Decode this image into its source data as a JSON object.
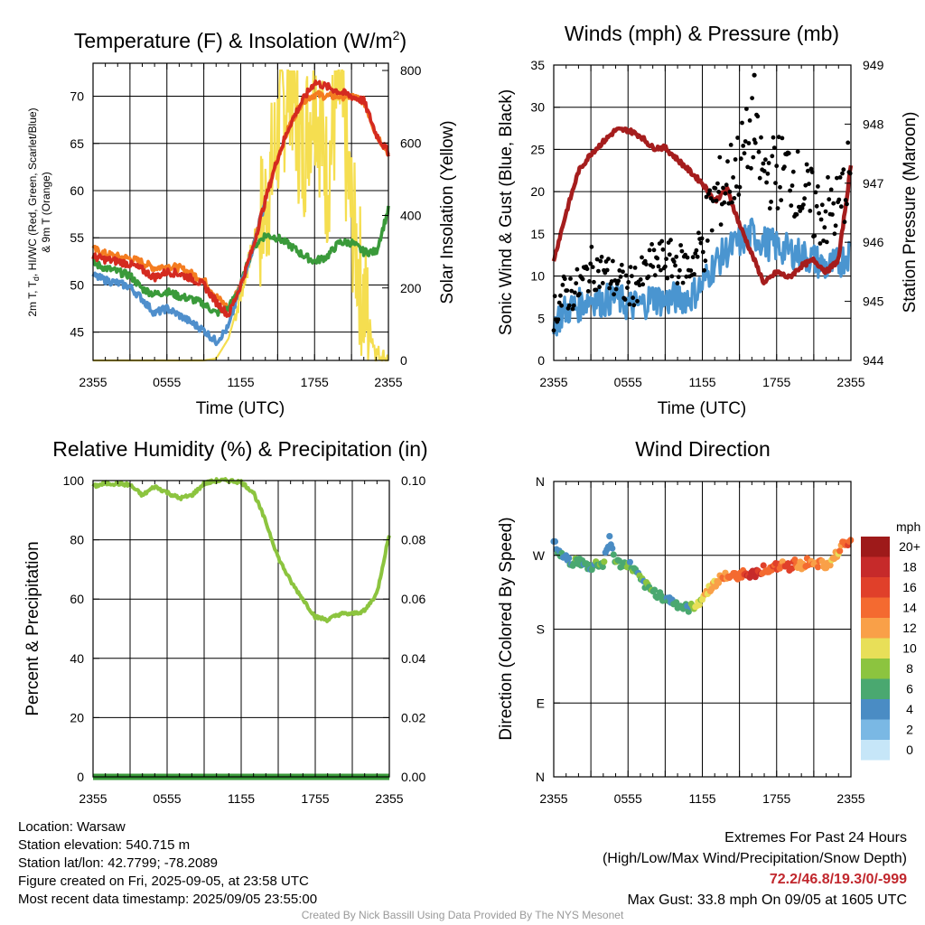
{
  "colors": {
    "temp": "#d42a20",
    "dewpoint": "#3a9a3a",
    "chill": "#4f8fcc",
    "temp9m": "#f47c20",
    "solar": "#f5de50",
    "wind": "#4a95d0",
    "gust": "#000000",
    "pressure": "#a51d1d",
    "rh": "#8cc43f",
    "precip": "#3a9a3a"
  },
  "time_ticks": [
    "2355",
    "0555",
    "1155",
    "1755",
    "2355"
  ],
  "panels": {
    "temperature": {
      "title": "Temperature (F) & Insolation (W/m",
      "title_sup": "2",
      "title_close": ")",
      "y_left_label_line1": "2m T, T",
      "y_left_label_sub": "d",
      "y_left_label_line1_rest": ", HI/WC (Red, Green, Scarlet/Blue)",
      "y_left_label_line2": "& 9m T (Orange)",
      "y_right_label": "Solar Insolation (Yellow)",
      "x_label": "Time (UTC)"
    },
    "winds": {
      "title": "Winds (mph) & Pressure (mb)",
      "y_left_label": "Sonic Wind & Gust (Blue, Black)",
      "y_right_label": "Station Pressure (Maroon)",
      "x_label": "Time (UTC)"
    },
    "humidity": {
      "title": "Relative Humidity (%) & Precipitation (in)",
      "y_left_label": "Percent & Precipitation"
    },
    "direction": {
      "title": "Wind Direction",
      "y_left_label": "Direction (Colored By Speed)",
      "colorbar_title": "mph",
      "colorbar_labels": [
        "20+",
        "18",
        "16",
        "14",
        "12",
        "10",
        "8",
        "6",
        "4",
        "2",
        "0"
      ],
      "colorbar_colors": [
        "#9e1a1a",
        "#c62a2a",
        "#e0402a",
        "#f46a30",
        "#f9a048",
        "#e8df58",
        "#8cc43f",
        "#4aa870",
        "#4a8cc4",
        "#7ab8e4",
        "#c6e6f8"
      ]
    }
  },
  "chart_data": [
    {
      "type": "line",
      "title": "Temperature (F) & Insolation (W/m2)",
      "xlabel": "Time (UTC)",
      "ylabel": "2m T, Td, HI/WC (Red, Green, Scarlet/Blue) & 9m T (Orange)",
      "y2label": "Solar Insolation (Yellow)",
      "x_hours": [
        0,
        1,
        2,
        3,
        4,
        5,
        6,
        7,
        8,
        9,
        10,
        11,
        12,
        13,
        14,
        15,
        16,
        17,
        18,
        19,
        20,
        21,
        22,
        23,
        24
      ],
      "x_ticks": [
        "2355",
        "0555",
        "1155",
        "1755",
        "2355"
      ],
      "ylim": [
        42,
        73.5
      ],
      "y_ticks": [
        45,
        50,
        55,
        60,
        65,
        70
      ],
      "y2lim": [
        0,
        820
      ],
      "y2_ticks": [
        0,
        200,
        400,
        600,
        800
      ],
      "series": [
        {
          "name": "2m T",
          "axis": "left",
          "values": [
            53.0,
            52.7,
            52.5,
            52.2,
            51.6,
            50.8,
            51.4,
            51.2,
            50.7,
            50.0,
            48.2,
            46.8,
            50.0,
            54.0,
            59.0,
            63.5,
            67.0,
            69.5,
            71.5,
            71.0,
            70.5,
            70.0,
            69.5,
            66.0,
            64.0
          ]
        },
        {
          "name": "Td",
          "axis": "left",
          "values": [
            52.3,
            51.8,
            51.4,
            51.0,
            49.6,
            49.0,
            49.3,
            48.8,
            48.5,
            48.0,
            47.0,
            47.5,
            50.0,
            54.0,
            55.3,
            55.0,
            54.2,
            53.2,
            52.5,
            53.0,
            54.5,
            54.5,
            53.5,
            53.5,
            58.0
          ]
        },
        {
          "name": "HI/WC",
          "axis": "left",
          "values": [
            51.0,
            50.5,
            50.2,
            49.8,
            48.5,
            47.0,
            47.5,
            46.8,
            46.0,
            45.2,
            44.0,
            45.5,
            50.0,
            54.0,
            59.0
          ]
        },
        {
          "name": "9m T",
          "axis": "left",
          "values": [
            53.8,
            53.3,
            53.0,
            52.8,
            52.4,
            51.8,
            52.0,
            51.8,
            51.2,
            50.5,
            48.8,
            47.5,
            50.0,
            54.0,
            59.0,
            63.5,
            67.0,
            69.5,
            70.2,
            70.0,
            70.0,
            70.0,
            69.5,
            66.0,
            64.0
          ]
        },
        {
          "name": "Solar Insolation",
          "axis": "right",
          "values": [
            0,
            0,
            0,
            0,
            0,
            0,
            0,
            0,
            0,
            0,
            5,
            60,
            180,
            320,
            420,
            620,
            800,
            560,
            760,
            500,
            760,
            400,
            160,
            20,
            0
          ]
        }
      ]
    },
    {
      "type": "line",
      "title": "Winds (mph) & Pressure (mb)",
      "xlabel": "Time (UTC)",
      "ylabel": "Sonic Wind & Gust (Blue, Black)",
      "y2label": "Station Pressure (Maroon)",
      "x_hours": [
        0,
        1,
        2,
        3,
        4,
        5,
        6,
        7,
        8,
        9,
        10,
        11,
        12,
        13,
        14,
        15,
        16,
        17,
        18,
        19,
        20,
        21,
        22,
        23,
        24
      ],
      "x_ticks": [
        "2355",
        "0555",
        "1155",
        "1755",
        "2355"
      ],
      "ylim": [
        0,
        35
      ],
      "y_ticks": [
        0,
        5,
        10,
        15,
        20,
        25,
        30,
        35
      ],
      "y2lim": [
        944,
        949
      ],
      "y2_ticks": [
        944,
        945,
        946,
        947,
        948,
        949
      ],
      "series": [
        {
          "name": "Sonic Wind",
          "axis": "left",
          "values": [
            4.5,
            6.0,
            6.5,
            7.5,
            7.0,
            7.5,
            6.5,
            6.5,
            7.5,
            7.0,
            7.5,
            7.5,
            9.0,
            11.5,
            13.0,
            14.0,
            15.0,
            14.0,
            13.5,
            13.0,
            12.5,
            12.0,
            11.0,
            11.5,
            13.0
          ]
        },
        {
          "name": "Gust",
          "axis": "left",
          "values": [
            6.0,
            8.0,
            8.5,
            11.0,
            10.5,
            9.5,
            8.5,
            9.5,
            11.5,
            12.0,
            11.5,
            11.0,
            14.0,
            19.0,
            21.0,
            23.5,
            27.0,
            22.0,
            22.5,
            22.5,
            20.0,
            18.0,
            17.5,
            18.0,
            23.0
          ]
        },
        {
          "name": "Station Pressure",
          "axis": "right",
          "values": [
            945.7,
            946.5,
            947.2,
            947.5,
            947.7,
            947.9,
            947.9,
            947.8,
            947.6,
            947.6,
            947.4,
            947.2,
            947.0,
            946.7,
            946.9,
            946.3,
            945.8,
            945.3,
            945.5,
            945.4,
            945.6,
            945.7,
            945.5,
            945.7,
            947.3
          ]
        }
      ],
      "max_gust_point": {
        "hour": 16.2,
        "value": 33.8
      }
    },
    {
      "type": "line",
      "title": "Relative Humidity (%) & Precipitation (in)",
      "ylabel": "Percent & Precipitation",
      "x_hours": [
        0,
        1,
        2,
        3,
        4,
        5,
        6,
        7,
        8,
        9,
        10,
        11,
        12,
        13,
        14,
        15,
        16,
        17,
        18,
        19,
        20,
        21,
        22,
        23,
        24
      ],
      "x_ticks": [
        "2355",
        "0555",
        "1155",
        "1755",
        "2355"
      ],
      "ylim": [
        0,
        100
      ],
      "y_ticks": [
        0,
        20,
        40,
        60,
        80,
        100
      ],
      "y2lim": [
        0,
        0.1
      ],
      "y2_ticks": [
        "0.00",
        "0.02",
        "0.04",
        "0.06",
        "0.08",
        "0.10"
      ],
      "series": [
        {
          "name": "Relative Humidity",
          "axis": "left",
          "values": [
            98.0,
            99.0,
            99.0,
            98.5,
            95.0,
            98.0,
            96.0,
            94.0,
            95.0,
            99.0,
            100.0,
            100.0,
            99.5,
            96.0,
            86.0,
            74.0,
            66.0,
            60.0,
            54.0,
            53.0,
            55.0,
            55.0,
            56.0,
            62.0,
            82.0
          ]
        },
        {
          "name": "Precipitation",
          "axis": "right",
          "values": [
            0,
            0,
            0,
            0,
            0,
            0,
            0,
            0,
            0,
            0,
            0,
            0,
            0,
            0,
            0,
            0,
            0,
            0,
            0,
            0,
            0,
            0,
            0,
            0,
            0
          ]
        }
      ]
    },
    {
      "type": "scatter",
      "title": "Wind Direction",
      "ylabel": "Direction (Colored By Speed)",
      "x_ticks": [
        "2355",
        "0555",
        "1155",
        "1755",
        "2355"
      ],
      "y_ticks": [
        "N",
        "E",
        "S",
        "W",
        "N"
      ],
      "ylim_degrees": [
        0,
        360
      ],
      "colorbar": {
        "title": "mph",
        "labels": [
          "20+",
          "18",
          "16",
          "14",
          "12",
          "10",
          "8",
          "6",
          "4",
          "2",
          "0"
        ]
      },
      "points": [
        {
          "hour": 0.0,
          "deg": 285,
          "speed": 4
        },
        {
          "hour": 0.5,
          "deg": 272,
          "speed": 6
        },
        {
          "hour": 1.0,
          "deg": 265,
          "speed": 5
        },
        {
          "hour": 1.5,
          "deg": 262,
          "speed": 6
        },
        {
          "hour": 2.0,
          "deg": 263,
          "speed": 6
        },
        {
          "hour": 2.5,
          "deg": 258,
          "speed": 6
        },
        {
          "hour": 3.0,
          "deg": 255,
          "speed": 5
        },
        {
          "hour": 3.5,
          "deg": 260,
          "speed": 6
        },
        {
          "hour": 4.0,
          "deg": 258,
          "speed": 7
        },
        {
          "hour": 4.3,
          "deg": 280,
          "speed": 4
        },
        {
          "hour": 4.5,
          "deg": 290,
          "speed": 4
        },
        {
          "hour": 5.0,
          "deg": 262,
          "speed": 6
        },
        {
          "hour": 5.5,
          "deg": 258,
          "speed": 6
        },
        {
          "hour": 6.0,
          "deg": 260,
          "speed": 6
        },
        {
          "hour": 6.5,
          "deg": 252,
          "speed": 6
        },
        {
          "hour": 7.0,
          "deg": 240,
          "speed": 6
        },
        {
          "hour": 7.5,
          "deg": 232,
          "speed": 6
        },
        {
          "hour": 8.0,
          "deg": 226,
          "speed": 6
        },
        {
          "hour": 8.5,
          "deg": 222,
          "speed": 5
        },
        {
          "hour": 9.0,
          "deg": 218,
          "speed": 6
        },
        {
          "hour": 9.5,
          "deg": 214,
          "speed": 6
        },
        {
          "hour": 10.0,
          "deg": 210,
          "speed": 6
        },
        {
          "hour": 10.5,
          "deg": 206,
          "speed": 6
        },
        {
          "hour": 11.0,
          "deg": 205,
          "speed": 5
        },
        {
          "hour": 11.5,
          "deg": 210,
          "speed": 9
        },
        {
          "hour": 12.0,
          "deg": 218,
          "speed": 10
        },
        {
          "hour": 12.5,
          "deg": 228,
          "speed": 12
        },
        {
          "hour": 13.0,
          "deg": 236,
          "speed": 12
        },
        {
          "hour": 13.5,
          "deg": 242,
          "speed": 13
        },
        {
          "hour": 14.0,
          "deg": 245,
          "speed": 13
        },
        {
          "hour": 14.5,
          "deg": 244,
          "speed": 15
        },
        {
          "hour": 15.0,
          "deg": 246,
          "speed": 14
        },
        {
          "hour": 15.5,
          "deg": 250,
          "speed": 16
        },
        {
          "hour": 16.0,
          "deg": 246,
          "speed": 18
        },
        {
          "hour": 16.5,
          "deg": 250,
          "speed": 17
        },
        {
          "hour": 17.0,
          "deg": 254,
          "speed": 15
        },
        {
          "hour": 17.5,
          "deg": 252,
          "speed": 14
        },
        {
          "hour": 18.0,
          "deg": 256,
          "speed": 16
        },
        {
          "hour": 18.5,
          "deg": 258,
          "speed": 14
        },
        {
          "hour": 19.0,
          "deg": 255,
          "speed": 17
        },
        {
          "hour": 19.5,
          "deg": 260,
          "speed": 14
        },
        {
          "hour": 20.0,
          "deg": 258,
          "speed": 12
        },
        {
          "hour": 20.5,
          "deg": 262,
          "speed": 14
        },
        {
          "hour": 21.0,
          "deg": 256,
          "speed": 12
        },
        {
          "hour": 21.5,
          "deg": 260,
          "speed": 13
        },
        {
          "hour": 22.0,
          "deg": 254,
          "speed": 12
        },
        {
          "hour": 22.5,
          "deg": 264,
          "speed": 11
        },
        {
          "hour": 23.0,
          "deg": 275,
          "speed": 12
        },
        {
          "hour": 23.3,
          "deg": 290,
          "speed": 12
        },
        {
          "hour": 23.6,
          "deg": 284,
          "speed": 16
        },
        {
          "hour": 24.0,
          "deg": 286,
          "speed": 15
        }
      ]
    }
  ],
  "footer": {
    "location": "Location: Warsaw",
    "elevation": "Station elevation: 540.715 m",
    "latlon": "Station lat/lon: 42.7799; -78.2089",
    "created": "Figure created on Fri, 2025-09-05, at 23:58 UTC",
    "recent": "Most recent data timestamp: 2025/09/05 23:55:00",
    "extremes_title": "Extremes For Past 24 Hours",
    "extremes_legend": "(High/Low/Max Wind/Precipitation/Snow Depth)",
    "extremes_values": "72.2/46.8/19.3/0/-999",
    "max_gust": "Max Gust: 33.8 mph On 09/05 at 1605 UTC",
    "credit": "Created By Nick Bassill Using Data Provided By The NYS Mesonet"
  }
}
